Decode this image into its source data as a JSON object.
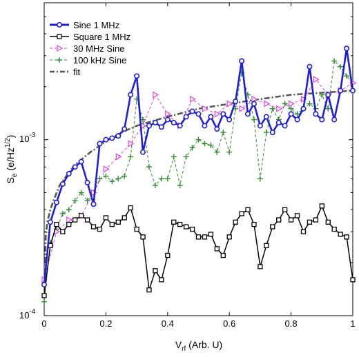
{
  "chart_data": {
    "type": "line",
    "y_scale": "log",
    "xlim": [
      0,
      1
    ],
    "ylim": [
      0.0001,
      0.006
    ],
    "x_ticks": [
      0,
      0.2,
      0.4,
      0.6,
      0.8,
      1
    ],
    "x_tick_labels": [
      "0",
      "0.2",
      "0.4",
      "0.6",
      "0.8",
      "1"
    ],
    "y_tick_labels": [
      {
        "base": "10",
        "exp": "-4",
        "value": 0.0001
      },
      {
        "base": "10",
        "exp": "-3",
        "value": 0.001
      }
    ],
    "xlabel": {
      "main": "V",
      "sub": "rf",
      "rest": " (Arb. U)"
    },
    "ylabel": {
      "main": "S",
      "sub": "e",
      "rest": " (e/Hz",
      "sup": "1/2",
      "end": ")"
    },
    "legend_position": "top-left",
    "series": [
      {
        "name": "Sine 1 MHz",
        "color": "#1f1fd6",
        "marker": "circle",
        "line": "solid",
        "points": [
          [
            0,
            0.00015
          ],
          [
            0.02,
            0.00034
          ],
          [
            0.04,
            0.00044
          ],
          [
            0.06,
            0.00056
          ],
          [
            0.08,
            0.00064
          ],
          [
            0.1,
            0.0007
          ],
          [
            0.12,
            0.00075
          ],
          [
            0.14,
            0.00057
          ],
          [
            0.16,
            0.00043
          ],
          [
            0.18,
            0.00095
          ],
          [
            0.2,
            0.001
          ],
          [
            0.22,
            0.00102
          ],
          [
            0.24,
            0.00105
          ],
          [
            0.26,
            0.00115
          ],
          [
            0.28,
            0.0018
          ],
          [
            0.3,
            0.0023
          ],
          [
            0.32,
            0.00085
          ],
          [
            0.34,
            0.0012
          ],
          [
            0.36,
            0.00125
          ],
          [
            0.38,
            0.00118
          ],
          [
            0.4,
            0.0013
          ],
          [
            0.42,
            0.00125
          ],
          [
            0.44,
            0.0012
          ],
          [
            0.46,
            0.00135
          ],
          [
            0.48,
            0.00145
          ],
          [
            0.5,
            0.0014
          ],
          [
            0.52,
            0.0012
          ],
          [
            0.54,
            0.00135
          ],
          [
            0.56,
            0.00115
          ],
          [
            0.58,
            0.0014
          ],
          [
            0.6,
            0.0013
          ],
          [
            0.62,
            0.00165
          ],
          [
            0.64,
            0.0028
          ],
          [
            0.66,
            0.0014
          ],
          [
            0.68,
            0.0016
          ],
          [
            0.7,
            0.0012
          ],
          [
            0.72,
            0.00135
          ],
          [
            0.74,
            0.0011
          ],
          [
            0.76,
            0.00125
          ],
          [
            0.78,
            0.0012
          ],
          [
            0.8,
            0.0014
          ],
          [
            0.82,
            0.0013
          ],
          [
            0.84,
            0.0015
          ],
          [
            0.86,
            0.0026
          ],
          [
            0.88,
            0.0014
          ],
          [
            0.9,
            0.0013
          ],
          [
            0.92,
            0.0018
          ],
          [
            0.94,
            0.0013
          ],
          [
            0.96,
            0.0019
          ],
          [
            0.98,
            0.0033
          ],
          [
            1.0,
            0.0019
          ]
        ]
      },
      {
        "name": "Square 1 MHz",
        "color": "#000000",
        "marker": "square",
        "line": "solid",
        "points": [
          [
            0,
            0.00013
          ],
          [
            0.02,
            0.00025
          ],
          [
            0.04,
            0.00033
          ],
          [
            0.06,
            0.0003
          ],
          [
            0.08,
            0.00033
          ],
          [
            0.1,
            0.00035
          ],
          [
            0.12,
            0.00037
          ],
          [
            0.14,
            0.00035
          ],
          [
            0.16,
            0.00032
          ],
          [
            0.18,
            0.00031
          ],
          [
            0.2,
            0.00036
          ],
          [
            0.22,
            0.00033
          ],
          [
            0.24,
            0.00034
          ],
          [
            0.26,
            0.00036
          ],
          [
            0.28,
            0.00041
          ],
          [
            0.3,
            0.00031
          ],
          [
            0.32,
            0.00028
          ],
          [
            0.34,
            0.00014
          ],
          [
            0.36,
            0.00018
          ],
          [
            0.38,
            0.00016
          ],
          [
            0.4,
            0.00022
          ],
          [
            0.42,
            0.00034
          ],
          [
            0.44,
            0.00033
          ],
          [
            0.46,
            0.00032
          ],
          [
            0.48,
            0.00031
          ],
          [
            0.5,
            0.00028
          ],
          [
            0.52,
            0.00028
          ],
          [
            0.54,
            0.00029
          ],
          [
            0.56,
            0.00024
          ],
          [
            0.58,
            0.00022
          ],
          [
            0.6,
            0.00028
          ],
          [
            0.62,
            0.00034
          ],
          [
            0.64,
            0.00038
          ],
          [
            0.66,
            0.0004
          ],
          [
            0.68,
            0.00033
          ],
          [
            0.7,
            0.00019
          ],
          [
            0.72,
            0.00025
          ],
          [
            0.74,
            0.00032
          ],
          [
            0.76,
            0.00035
          ],
          [
            0.78,
            0.0004
          ],
          [
            0.8,
            0.00035
          ],
          [
            0.82,
            0.00037
          ],
          [
            0.84,
            0.0003
          ],
          [
            0.86,
            0.00034
          ],
          [
            0.88,
            0.00035
          ],
          [
            0.9,
            0.00042
          ],
          [
            0.92,
            0.00034
          ],
          [
            0.94,
            0.00031
          ],
          [
            0.96,
            0.00029
          ],
          [
            0.98,
            0.00028
          ],
          [
            1.0,
            0.00016
          ]
        ]
      },
      {
        "name": "30 MHz Sine",
        "color": "#e040e0",
        "marker": "triangle-right",
        "line": "dashed",
        "points": [
          [
            0,
            0.00016
          ],
          [
            0.04,
            0.0003
          ],
          [
            0.08,
            0.00035
          ],
          [
            0.12,
            0.00037
          ],
          [
            0.16,
            0.0005
          ],
          [
            0.2,
            0.00068
          ],
          [
            0.24,
            0.0008
          ],
          [
            0.28,
            0.00095
          ],
          [
            0.32,
            0.0012
          ],
          [
            0.36,
            0.0018
          ],
          [
            0.4,
            0.0014
          ],
          [
            0.44,
            0.0012
          ],
          [
            0.48,
            0.0017
          ],
          [
            0.52,
            0.0015
          ],
          [
            0.56,
            0.0014
          ],
          [
            0.6,
            0.0016
          ],
          [
            0.64,
            0.0015
          ],
          [
            0.68,
            0.0017
          ],
          [
            0.72,
            0.0016
          ],
          [
            0.76,
            0.0015
          ],
          [
            0.8,
            0.0016
          ],
          [
            0.84,
            0.0017
          ],
          [
            0.88,
            0.0022
          ],
          [
            0.92,
            0.0018
          ],
          [
            0.96,
            0.0019
          ],
          [
            1.0,
            0.0021
          ]
        ]
      },
      {
        "name": "100 kHz Sine",
        "color": "#2e8b2e",
        "marker": "plus",
        "line": "dashed",
        "points": [
          [
            0,
            0.00012
          ],
          [
            0.02,
            0.00026
          ],
          [
            0.04,
            0.00031
          ],
          [
            0.06,
            0.00038
          ],
          [
            0.08,
            0.0004
          ],
          [
            0.1,
            0.00045
          ],
          [
            0.12,
            0.0005
          ],
          [
            0.14,
            0.00045
          ],
          [
            0.16,
            0.0005
          ],
          [
            0.18,
            0.0006
          ],
          [
            0.2,
            0.00062
          ],
          [
            0.22,
            0.00058
          ],
          [
            0.24,
            0.0006
          ],
          [
            0.26,
            0.00062
          ],
          [
            0.28,
            0.0008
          ],
          [
            0.3,
            0.0017
          ],
          [
            0.32,
            0.0013
          ],
          [
            0.34,
            0.0007
          ],
          [
            0.36,
            0.00055
          ],
          [
            0.38,
            0.0006
          ],
          [
            0.4,
            0.0006
          ],
          [
            0.42,
            0.0008
          ],
          [
            0.44,
            0.00055
          ],
          [
            0.46,
            0.0008
          ],
          [
            0.48,
            0.0009
          ],
          [
            0.5,
            0.001
          ],
          [
            0.52,
            0.00095
          ],
          [
            0.54,
            0.00093
          ],
          [
            0.56,
            0.00085
          ],
          [
            0.58,
            0.0011
          ],
          [
            0.6,
            0.00085
          ],
          [
            0.62,
            0.0015
          ],
          [
            0.64,
            0.0024
          ],
          [
            0.66,
            0.0018
          ],
          [
            0.68,
            0.0013
          ],
          [
            0.7,
            0.0006
          ],
          [
            0.72,
            0.0011
          ],
          [
            0.74,
            0.0015
          ],
          [
            0.76,
            0.0013
          ],
          [
            0.78,
            0.0016
          ],
          [
            0.8,
            0.0015
          ],
          [
            0.82,
            0.0014
          ],
          [
            0.84,
            0.0015
          ],
          [
            0.86,
            0.0016
          ],
          [
            0.88,
            0.0015
          ],
          [
            0.9,
            0.0018
          ],
          [
            0.92,
            0.0015
          ],
          [
            0.94,
            0.0028
          ],
          [
            0.96,
            0.0026
          ],
          [
            0.98,
            0.0023
          ],
          [
            1.0,
            0.0021
          ]
        ]
      },
      {
        "name": "fit",
        "color": "#555555",
        "marker": "none",
        "line": "dash-dot",
        "points": [
          [
            0.001,
            0.00013
          ],
          [
            0.005,
            0.00028
          ],
          [
            0.01,
            0.00034
          ],
          [
            0.02,
            0.0004
          ],
          [
            0.03,
            0.00045
          ],
          [
            0.05,
            0.00055
          ],
          [
            0.08,
            0.00065
          ],
          [
            0.1,
            0.00072
          ],
          [
            0.15,
            0.00085
          ],
          [
            0.2,
            0.00098
          ],
          [
            0.25,
            0.0011
          ],
          [
            0.3,
            0.0012
          ],
          [
            0.4,
            0.00135
          ],
          [
            0.5,
            0.0015
          ],
          [
            0.6,
            0.0016
          ],
          [
            0.7,
            0.0017
          ],
          [
            0.8,
            0.0018
          ],
          [
            0.9,
            0.00185
          ],
          [
            1.0,
            0.0019
          ]
        ]
      }
    ]
  }
}
